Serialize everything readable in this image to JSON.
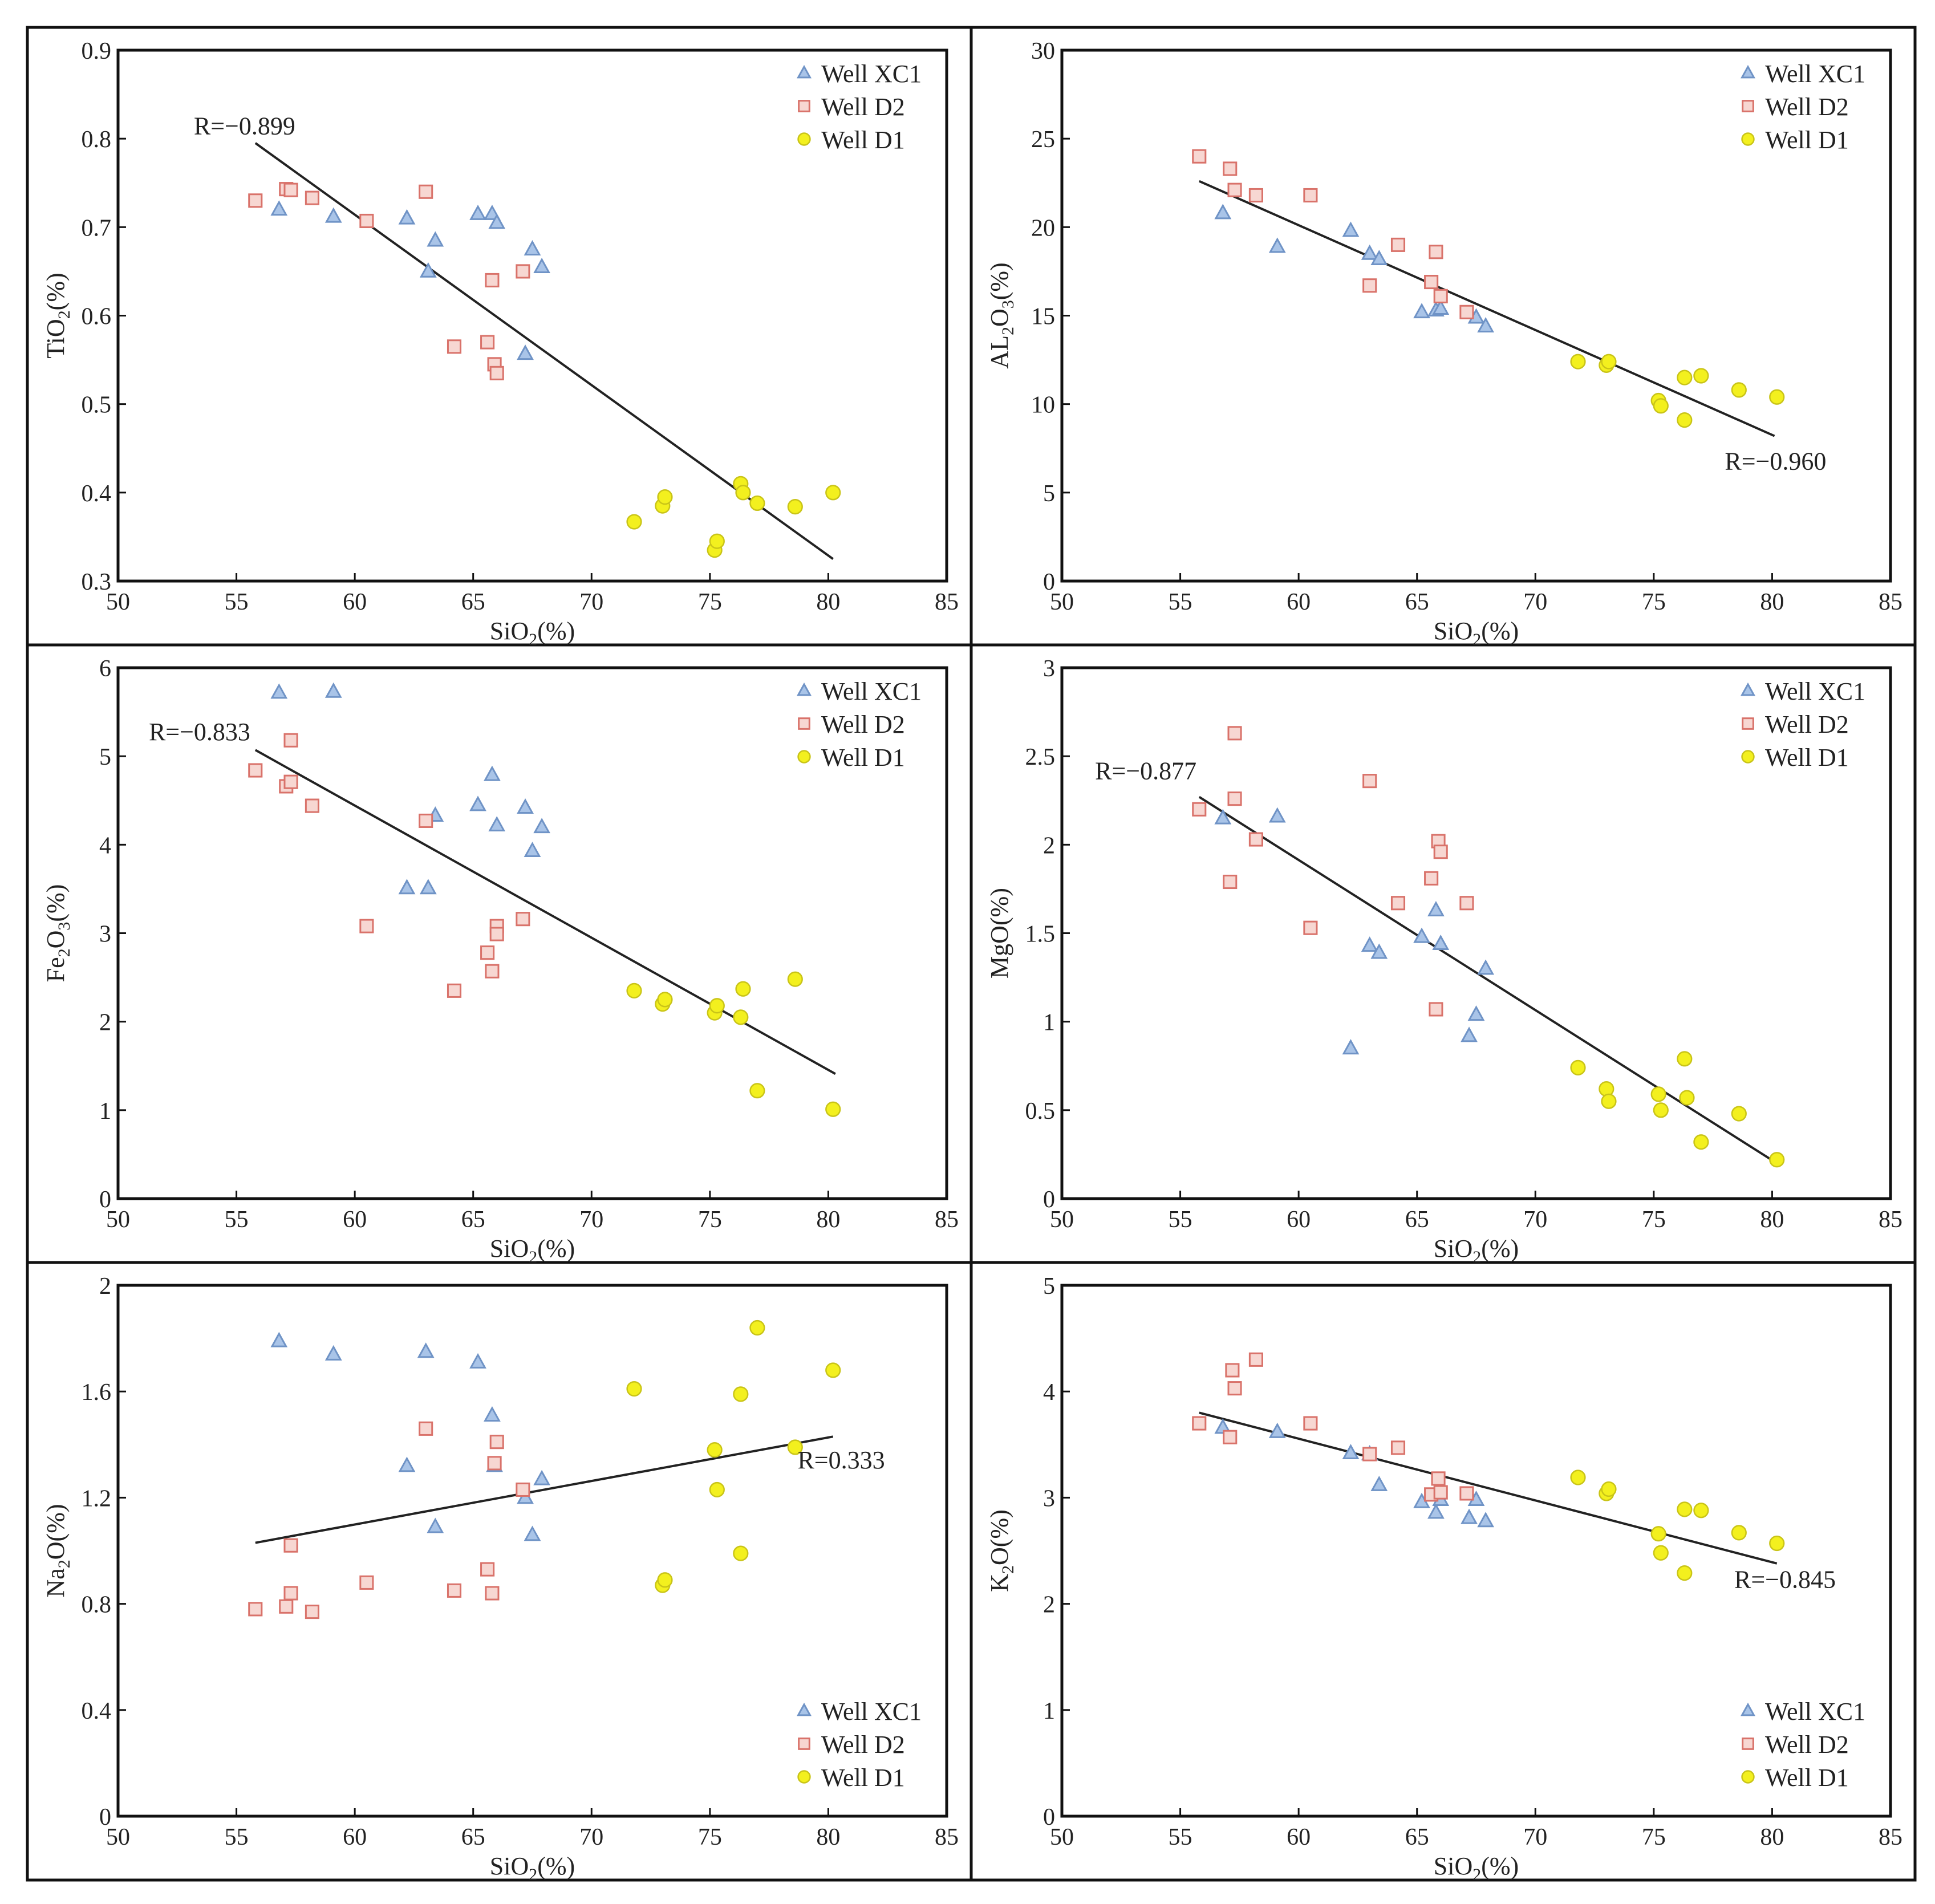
{
  "colors": {
    "xc1": "#a9c4e8",
    "xc1_stroke": "#6f93c6",
    "d2": "#f7d7d2",
    "d2_stroke": "#d9726a",
    "d1": "#f3f01e",
    "d1_stroke": "#c9c418",
    "line": "#222222"
  },
  "chart_data": [
    {
      "type": "scatter",
      "title": "",
      "xlabel": "SiO",
      "xlabel_sub": "2",
      "xlabel_suffix": "(%)",
      "ylabel": "TiO",
      "ylabel_sub": "2",
      "ylabel_suffix": "(%)",
      "xlim": [
        50,
        85
      ],
      "ylim": [
        0.3,
        0.9
      ],
      "xticks": [
        50,
        55,
        60,
        65,
        70,
        75,
        80,
        85
      ],
      "yticks": [
        0.3,
        0.4,
        0.5,
        0.6,
        0.7,
        0.8,
        0.9
      ],
      "ytick_labels": [
        "0.3",
        "0.4",
        "0.5",
        "0.6",
        "0.7",
        "0.8",
        "0.9"
      ],
      "legend": "top-right",
      "annotation": {
        "text": "R=−0.899",
        "x": 53.2,
        "y": 0.805
      },
      "fit": {
        "x1": 55.8,
        "y1": 0.795,
        "x2": 80.2,
        "y2": 0.325
      },
      "series": [
        {
          "name": "Well XC1",
          "marker": "triangle",
          "x": [
            56.8,
            59.1,
            62.2,
            63.1,
            63.4,
            65.2,
            65.8,
            66.0,
            67.2,
            67.5,
            67.9
          ],
          "y": [
            0.72,
            0.712,
            0.71,
            0.65,
            0.685,
            0.715,
            0.715,
            0.705,
            0.557,
            0.675,
            0.655
          ]
        },
        {
          "name": "Well D2",
          "marker": "square",
          "x": [
            55.8,
            57.1,
            57.3,
            58.2,
            60.5,
            63.0,
            64.2,
            65.6,
            65.8,
            65.9,
            66.0,
            67.1
          ],
          "y": [
            0.73,
            0.743,
            0.742,
            0.733,
            0.707,
            0.74,
            0.565,
            0.57,
            0.64,
            0.545,
            0.535,
            0.65
          ]
        },
        {
          "name": "Well D1",
          "marker": "circle",
          "x": [
            71.8,
            73.0,
            73.1,
            75.2,
            75.3,
            76.3,
            76.4,
            77.0,
            78.6,
            80.2
          ],
          "y": [
            0.367,
            0.385,
            0.395,
            0.335,
            0.345,
            0.41,
            0.4,
            0.388,
            0.384,
            0.4
          ]
        }
      ]
    },
    {
      "type": "scatter",
      "title": "",
      "xlabel": "SiO",
      "xlabel_sub": "2",
      "xlabel_suffix": "(%)",
      "ylabel": "AL",
      "ylabel_sub": "2",
      "ylabel_mid": "O",
      "ylabel_sub2": "3",
      "ylabel_suffix": "(%)",
      "xlim": [
        50,
        85
      ],
      "ylim": [
        0,
        30
      ],
      "xticks": [
        50,
        55,
        60,
        65,
        70,
        75,
        80,
        85
      ],
      "yticks": [
        0,
        5,
        10,
        15,
        20,
        25,
        30
      ],
      "ytick_labels": [
        "0",
        "5",
        "10",
        "15",
        "20",
        "25",
        "30"
      ],
      "legend": "top-right",
      "annotation": {
        "text": "R=−0.960",
        "x": 78.0,
        "y": 6.3
      },
      "fit": {
        "x1": 55.8,
        "y1": 22.6,
        "x2": 80.1,
        "y2": 8.2
      },
      "series": [
        {
          "name": "Well XC1",
          "marker": "triangle",
          "x": [
            56.8,
            59.1,
            62.2,
            63.0,
            63.4,
            65.2,
            65.8,
            66.0,
            67.5,
            67.9
          ],
          "y": [
            20.8,
            18.9,
            19.8,
            18.5,
            18.2,
            15.2,
            15.3,
            15.4,
            14.9,
            14.4
          ]
        },
        {
          "name": "Well D2",
          "marker": "square",
          "x": [
            55.8,
            57.1,
            57.3,
            58.2,
            60.5,
            63.0,
            64.2,
            65.6,
            65.8,
            66.0,
            67.1
          ],
          "y": [
            24.0,
            23.3,
            22.1,
            21.8,
            21.8,
            16.7,
            19.0,
            16.9,
            18.6,
            16.1,
            15.2
          ]
        },
        {
          "name": "Well D1",
          "marker": "circle",
          "x": [
            71.8,
            73.0,
            73.1,
            75.2,
            75.3,
            76.3,
            76.3,
            77.0,
            78.6,
            80.2
          ],
          "y": [
            12.4,
            12.2,
            12.4,
            10.2,
            9.9,
            11.5,
            9.1,
            11.6,
            10.8,
            10.4
          ]
        }
      ]
    },
    {
      "type": "scatter",
      "title": "",
      "xlabel": "SiO",
      "xlabel_sub": "2",
      "xlabel_suffix": "(%)",
      "ylabel": "Fe",
      "ylabel_sub": "2",
      "ylabel_mid": "O",
      "ylabel_sub2": "3",
      "ylabel_suffix": "(%)",
      "xlim": [
        50,
        85
      ],
      "ylim": [
        0,
        6
      ],
      "xticks": [
        50,
        55,
        60,
        65,
        70,
        75,
        80,
        85
      ],
      "yticks": [
        0,
        1,
        2,
        3,
        4,
        5,
        6
      ],
      "ytick_labels": [
        "0",
        "1",
        "2",
        "3",
        "4",
        "5",
        "6"
      ],
      "legend": "top-right",
      "annotation": {
        "text": "R=−0.833",
        "x": 51.3,
        "y": 5.18
      },
      "fit": {
        "x1": 55.8,
        "y1": 5.07,
        "x2": 80.3,
        "y2": 1.41
      },
      "series": [
        {
          "name": "Well XC1",
          "marker": "triangle",
          "x": [
            56.8,
            59.1,
            62.2,
            63.1,
            63.4,
            65.2,
            65.8,
            66.0,
            67.2,
            67.5,
            67.9
          ],
          "y": [
            5.72,
            5.73,
            3.51,
            3.51,
            4.33,
            4.45,
            4.79,
            4.22,
            4.42,
            3.93,
            4.2
          ]
        },
        {
          "name": "Well D2",
          "marker": "square",
          "x": [
            55.8,
            57.1,
            57.3,
            57.3,
            58.2,
            60.5,
            63.0,
            64.2,
            65.6,
            65.8,
            66.0,
            66.0,
            67.1
          ],
          "y": [
            4.84,
            4.66,
            5.18,
            4.71,
            4.44,
            3.08,
            4.27,
            2.35,
            2.78,
            2.57,
            3.08,
            2.99,
            3.16
          ]
        },
        {
          "name": "Well D1",
          "marker": "circle",
          "x": [
            71.8,
            73.0,
            73.1,
            75.2,
            75.3,
            76.3,
            76.4,
            77.0,
            78.6,
            80.2
          ],
          "y": [
            2.35,
            2.2,
            2.25,
            2.1,
            2.18,
            2.05,
            2.37,
            1.22,
            2.48,
            1.01
          ]
        }
      ]
    },
    {
      "type": "scatter",
      "title": "",
      "xlabel": "SiO",
      "xlabel_sub": "2",
      "xlabel_suffix": "(%)",
      "ylabel": "MgO",
      "ylabel_suffix": "(%)",
      "xlim": [
        50,
        85
      ],
      "ylim": [
        0,
        3
      ],
      "xticks": [
        50,
        55,
        60,
        65,
        70,
        75,
        80,
        85
      ],
      "yticks": [
        0,
        0.5,
        1,
        1.5,
        2,
        2.5,
        3
      ],
      "ytick_labels": [
        "0",
        "0.5",
        "1",
        "1.5",
        "2",
        "2.5",
        "3"
      ],
      "legend": "top-right",
      "annotation": {
        "text": "R=−0.877",
        "x": 51.4,
        "y": 2.37
      },
      "fit": {
        "x1": 55.8,
        "y1": 2.27,
        "x2": 80.2,
        "y2": 0.2
      },
      "series": [
        {
          "name": "Well XC1",
          "marker": "triangle",
          "x": [
            56.8,
            59.1,
            62.2,
            63.0,
            63.4,
            65.2,
            65.8,
            66.0,
            67.2,
            67.5,
            67.9
          ],
          "y": [
            2.15,
            2.16,
            0.85,
            1.43,
            1.39,
            1.48,
            1.63,
            1.44,
            0.92,
            1.04,
            1.3
          ]
        },
        {
          "name": "Well D2",
          "marker": "square",
          "x": [
            55.8,
            57.1,
            57.3,
            57.3,
            58.2,
            60.5,
            63.0,
            64.2,
            65.6,
            65.8,
            65.9,
            66.0,
            67.1
          ],
          "y": [
            2.2,
            1.79,
            2.63,
            2.26,
            2.03,
            1.53,
            2.36,
            1.67,
            1.81,
            1.07,
            2.02,
            1.96,
            1.67
          ]
        },
        {
          "name": "Well D1",
          "marker": "circle",
          "x": [
            71.8,
            73.0,
            73.1,
            75.2,
            75.3,
            76.3,
            76.4,
            77.0,
            78.6,
            80.2
          ],
          "y": [
            0.74,
            0.62,
            0.55,
            0.59,
            0.5,
            0.79,
            0.57,
            0.32,
            0.48,
            0.22
          ]
        }
      ]
    },
    {
      "type": "scatter",
      "title": "",
      "xlabel": "SiO",
      "xlabel_sub": "2",
      "xlabel_suffix": "(%)",
      "ylabel": "Na",
      "ylabel_sub": "2",
      "ylabel_mid": "O",
      "ylabel_suffix": "(%)",
      "xlim": [
        50,
        85
      ],
      "ylim": [
        0,
        2
      ],
      "xticks": [
        50,
        55,
        60,
        65,
        70,
        75,
        80,
        85
      ],
      "yticks": [
        0,
        0.4,
        0.8,
        1.2,
        1.6,
        2
      ],
      "ytick_labels": [
        "0",
        "0.4",
        "0.8",
        "1.2",
        "1.6",
        "2"
      ],
      "legend": "bottom-right",
      "annotation": {
        "text": "R=0.333",
        "x": 78.7,
        "y": 1.31
      },
      "fit": {
        "x1": 55.8,
        "y1": 1.03,
        "x2": 80.2,
        "y2": 1.43
      },
      "series": [
        {
          "name": "Well XC1",
          "marker": "triangle",
          "x": [
            56.8,
            59.1,
            62.2,
            63.0,
            63.4,
            65.2,
            65.8,
            65.9,
            67.2,
            67.5,
            67.9
          ],
          "y": [
            1.79,
            1.74,
            1.32,
            1.75,
            1.09,
            1.71,
            1.51,
            1.32,
            1.2,
            1.06,
            1.27
          ]
        },
        {
          "name": "Well D2",
          "marker": "square",
          "x": [
            55.8,
            57.1,
            57.3,
            57.3,
            58.2,
            60.5,
            63.0,
            64.2,
            65.6,
            65.8,
            65.9,
            66.0,
            67.1
          ],
          "y": [
            0.78,
            0.79,
            1.02,
            0.84,
            0.77,
            0.88,
            1.46,
            0.85,
            0.93,
            0.84,
            1.33,
            1.41,
            1.23
          ]
        },
        {
          "name": "Well D1",
          "marker": "circle",
          "x": [
            71.8,
            73.0,
            73.1,
            75.2,
            75.3,
            76.3,
            76.3,
            77.0,
            78.6,
            80.2
          ],
          "y": [
            1.61,
            0.87,
            0.89,
            1.38,
            1.23,
            1.59,
            0.99,
            1.84,
            1.39,
            1.68
          ]
        }
      ]
    },
    {
      "type": "scatter",
      "title": "",
      "xlabel": "SiO",
      "xlabel_sub": "2",
      "xlabel_suffix": "(%)",
      "ylabel": "K",
      "ylabel_sub": "2",
      "ylabel_mid": "O",
      "ylabel_suffix": "(%)",
      "xlim": [
        50,
        85
      ],
      "ylim": [
        0,
        5
      ],
      "xticks": [
        50,
        55,
        60,
        65,
        70,
        75,
        80,
        85
      ],
      "yticks": [
        0,
        1,
        2,
        3,
        4,
        5
      ],
      "ytick_labels": [
        "0",
        "1",
        "2",
        "3",
        "4",
        "5"
      ],
      "legend": "bottom-right",
      "annotation": {
        "text": "R=−0.845",
        "x": 78.4,
        "y": 2.15
      },
      "fit": {
        "x1": 55.8,
        "y1": 3.8,
        "x2": 80.2,
        "y2": 2.38
      },
      "series": [
        {
          "name": "Well XC1",
          "marker": "triangle",
          "x": [
            56.8,
            59.1,
            62.2,
            63.0,
            63.4,
            65.2,
            65.8,
            66.0,
            67.2,
            67.5,
            67.9
          ],
          "y": [
            3.66,
            3.62,
            3.42,
            3.41,
            3.12,
            2.96,
            2.86,
            2.98,
            2.81,
            2.98,
            2.78
          ]
        },
        {
          "name": "Well D2",
          "marker": "square",
          "x": [
            55.8,
            57.1,
            57.2,
            57.3,
            58.2,
            60.5,
            63.0,
            64.2,
            65.6,
            65.9,
            66.0,
            67.1
          ],
          "y": [
            3.7,
            3.57,
            4.2,
            4.03,
            4.3,
            3.7,
            3.41,
            3.47,
            3.03,
            3.18,
            3.05,
            3.04
          ]
        },
        {
          "name": "Well D1",
          "marker": "circle",
          "x": [
            71.8,
            73.0,
            73.1,
            75.2,
            75.3,
            76.3,
            76.3,
            77.0,
            78.6,
            80.2
          ],
          "y": [
            3.19,
            3.04,
            3.08,
            2.66,
            2.48,
            2.89,
            2.29,
            2.88,
            2.67,
            2.57
          ]
        }
      ]
    }
  ]
}
